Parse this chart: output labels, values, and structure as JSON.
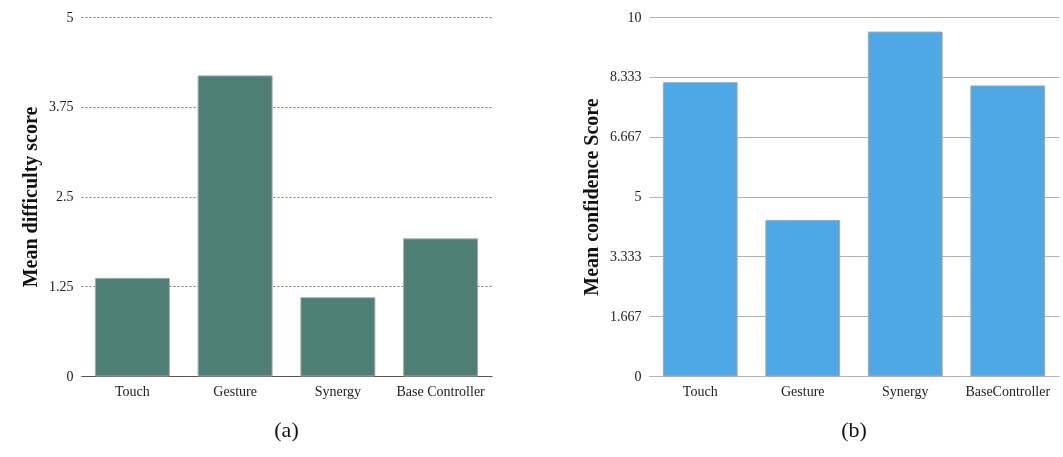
{
  "chart_data": [
    {
      "type": "bar",
      "categories": [
        "Touch",
        "Gesture",
        "Synergy",
        "Base Controller"
      ],
      "values": [
        1.36,
        4.18,
        1.09,
        1.91
      ],
      "color": "#4e7f74",
      "ylabel": "Mean difficulty score",
      "ylim": [
        0,
        5
      ],
      "yticks": [
        0,
        1.25,
        2.5,
        3.75,
        5
      ],
      "grid": "y",
      "annotations": [
        "(a)"
      ]
    },
    {
      "type": "bar",
      "categories": [
        "Touch",
        "Gesture",
        "Synergy",
        "BaseController"
      ],
      "values": [
        8.17,
        4.33,
        9.58,
        8.08
      ],
      "color": "#4ea8e6",
      "ylabel": "Mean confidence Score",
      "ylim": [
        0,
        10
      ],
      "yticks": [
        0,
        1.667,
        3.333,
        5,
        6.667,
        8.333,
        10
      ],
      "grid": "y",
      "annotations": [
        "(b)"
      ]
    }
  ]
}
